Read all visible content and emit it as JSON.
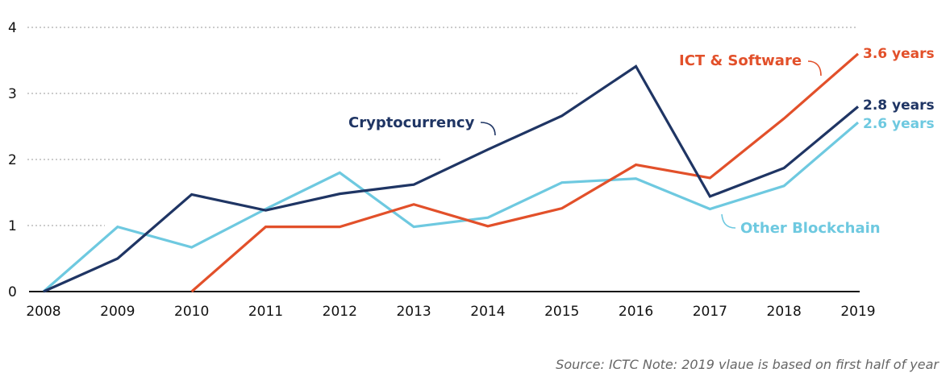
{
  "chart_data": {
    "type": "line",
    "categories": [
      "2008",
      "2009",
      "2010",
      "2011",
      "2012",
      "2013",
      "2014",
      "2015",
      "2016",
      "2017",
      "2018",
      "2019"
    ],
    "ylim": [
      0,
      4
    ],
    "yticks": [
      "0",
      "1",
      "2",
      "3",
      "4"
    ],
    "grid": "dotted horizontal",
    "series": [
      {
        "name": "Cryptocurrency",
        "color": "#1f3564",
        "end_label": "2.8 years",
        "values": [
          0,
          0.5,
          1.47,
          1.23,
          1.48,
          1.62,
          2.15,
          2.66,
          3.41,
          1.44,
          1.87,
          2.8
        ]
      },
      {
        "name": "ICT & Software",
        "color": "#e2502a",
        "end_label": "3.6 years",
        "values": [
          null,
          null,
          0,
          0.98,
          0.98,
          1.32,
          0.99,
          1.26,
          1.92,
          1.72,
          2.62,
          3.6
        ]
      },
      {
        "name": "Other Blockchain",
        "color": "#6ec9e0",
        "end_label": "2.6 years",
        "values": [
          0,
          0.98,
          0.67,
          1.25,
          1.8,
          0.98,
          1.12,
          1.65,
          1.71,
          1.25,
          1.6,
          2.56
        ]
      }
    ]
  },
  "footer": {
    "source": "Source: ICTC  Note: 2019 vlaue is based on first half of year"
  }
}
